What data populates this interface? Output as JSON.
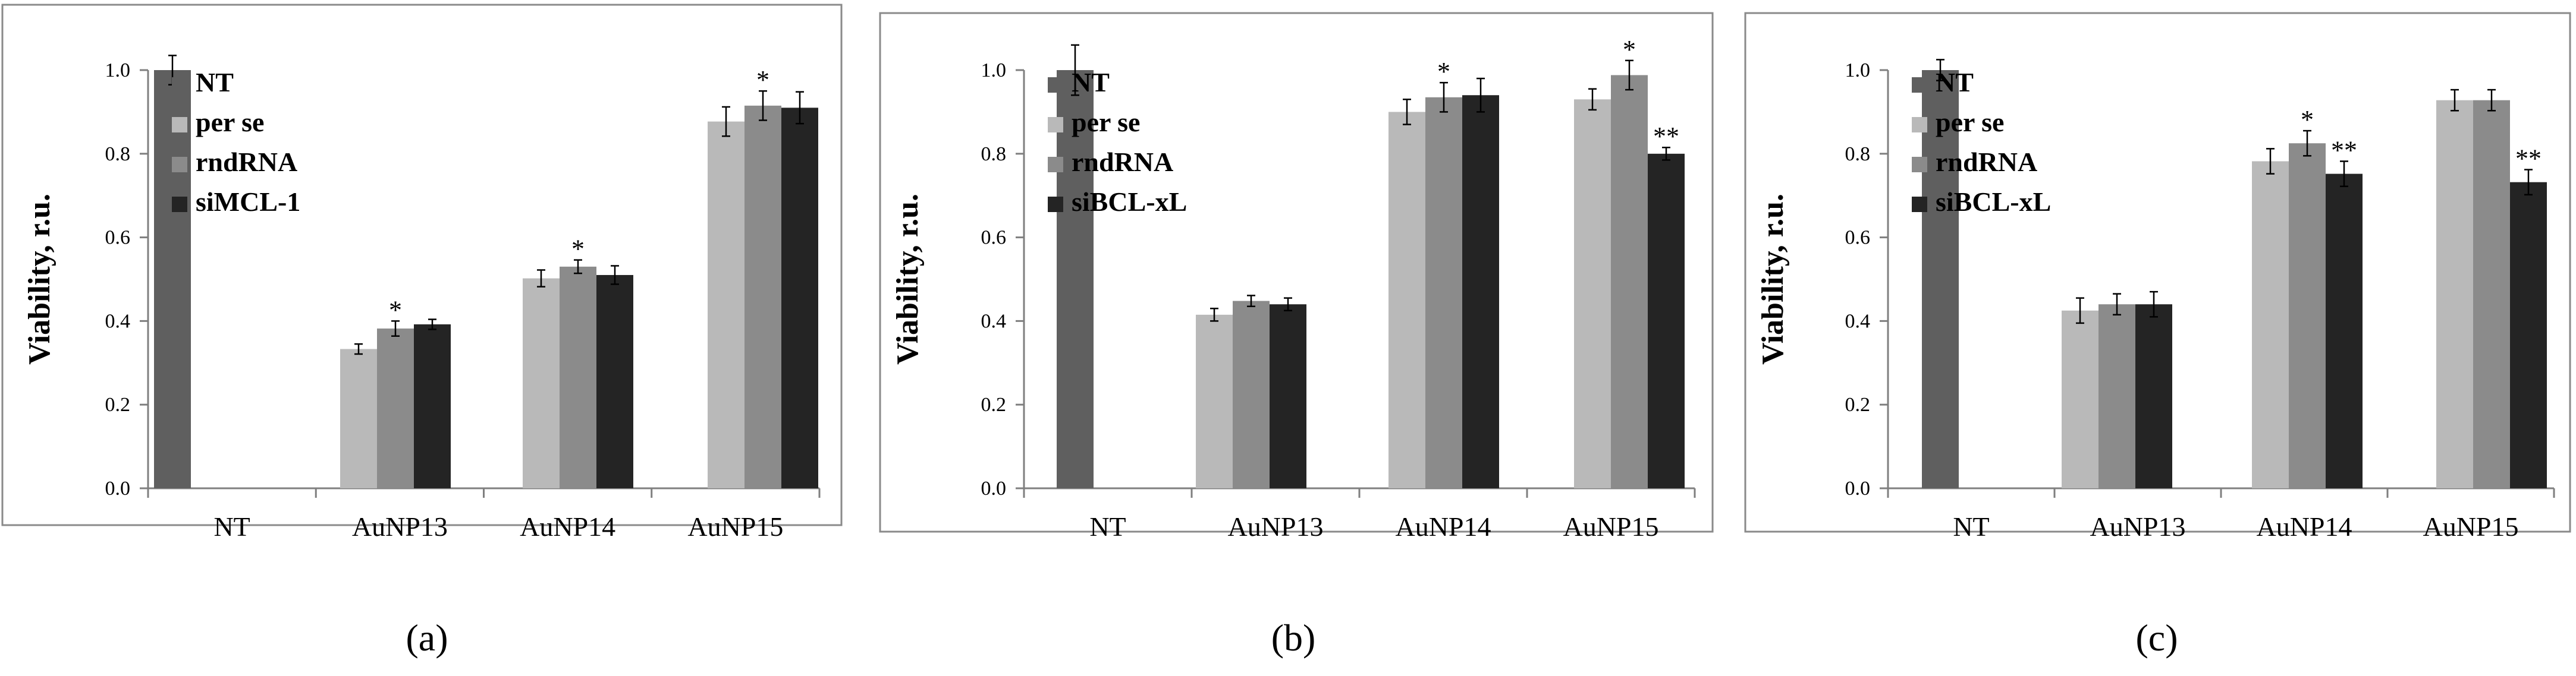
{
  "colors": {
    "NT": "#5f5f5f",
    "per se": "#b9b9b9",
    "rndRNA": "#8b8b8b",
    "siMCL-1": "#242424",
    "siBCL-xL": "#242424",
    "axis": "#7f7f7f",
    "frame": "#8a8a8a"
  },
  "chart_data": [
    {
      "type": "bar",
      "panel_label": "(a)",
      "ylabel": "Viability, r.u.",
      "ylim": [
        0,
        1.0
      ],
      "yticks": [
        "0.0",
        "0.2",
        "0.4",
        "0.6",
        "0.8",
        "1.0"
      ],
      "categories": [
        "NT",
        "AuNP13",
        "AuNP14",
        "AuNP15"
      ],
      "legend_position": "top-left",
      "series": [
        {
          "name": "NT",
          "values": [
            1.0,
            null,
            null,
            null
          ],
          "errors": [
            0.035,
            null,
            null,
            null
          ],
          "annotations": [
            "",
            "",
            "",
            ""
          ]
        },
        {
          "name": "per se",
          "values": [
            null,
            0.333,
            0.502,
            0.877
          ],
          "errors": [
            null,
            0.012,
            0.02,
            0.035
          ],
          "annotations": [
            "",
            "",
            "",
            ""
          ]
        },
        {
          "name": "rndRNA",
          "values": [
            null,
            0.382,
            0.53,
            0.915
          ],
          "errors": [
            null,
            0.018,
            0.016,
            0.035
          ],
          "annotations": [
            "",
            "*",
            "*",
            "*"
          ]
        },
        {
          "name": "siMCL-1",
          "values": [
            null,
            0.392,
            0.51,
            0.91
          ],
          "errors": [
            null,
            0.012,
            0.022,
            0.038
          ],
          "annotations": [
            "",
            "",
            "",
            ""
          ]
        }
      ]
    },
    {
      "type": "bar",
      "panel_label": "(b)",
      "ylabel": "Viability, r.u.",
      "ylim": [
        0,
        1.0
      ],
      "yticks": [
        "0.0",
        "0.2",
        "0.4",
        "0.6",
        "0.8",
        "1.0"
      ],
      "categories": [
        "NT",
        "AuNP13",
        "AuNP14",
        "AuNP15"
      ],
      "legend_position": "top-left",
      "series": [
        {
          "name": "NT",
          "values": [
            1.0,
            null,
            null,
            null
          ],
          "errors": [
            0.06,
            null,
            null,
            null
          ],
          "annotations": [
            "",
            "",
            "",
            ""
          ]
        },
        {
          "name": "per se",
          "values": [
            null,
            0.415,
            0.9,
            0.93
          ],
          "errors": [
            null,
            0.015,
            0.03,
            0.025
          ],
          "annotations": [
            "",
            "",
            "",
            ""
          ]
        },
        {
          "name": "rndRNA",
          "values": [
            null,
            0.448,
            0.935,
            0.988
          ],
          "errors": [
            null,
            0.013,
            0.035,
            0.035
          ],
          "annotations": [
            "",
            "",
            "*",
            "*"
          ]
        },
        {
          "name": "siBCL-xL",
          "values": [
            null,
            0.44,
            0.94,
            0.8
          ],
          "errors": [
            null,
            0.015,
            0.04,
            0.015
          ],
          "annotations": [
            "",
            "",
            "",
            "**"
          ]
        }
      ]
    },
    {
      "type": "bar",
      "panel_label": "(c)",
      "ylabel": "Viability, r.u.",
      "ylim": [
        0,
        1.0
      ],
      "yticks": [
        "0.0",
        "0.2",
        "0.4",
        "0.6",
        "0.8",
        "1.0"
      ],
      "categories": [
        "NT",
        "AuNP13",
        "AuNP14",
        "AuNP15"
      ],
      "legend_position": "top-left",
      "series": [
        {
          "name": "NT",
          "values": [
            1.0,
            null,
            null,
            null
          ],
          "errors": [
            0.025,
            null,
            null,
            null
          ],
          "annotations": [
            "",
            "",
            "",
            ""
          ]
        },
        {
          "name": "per se",
          "values": [
            null,
            0.425,
            0.782,
            0.928
          ],
          "errors": [
            null,
            0.03,
            0.03,
            0.025
          ],
          "annotations": [
            "",
            "",
            "",
            ""
          ]
        },
        {
          "name": "rndRNA",
          "values": [
            null,
            0.44,
            0.825,
            0.928
          ],
          "errors": [
            null,
            0.025,
            0.03,
            0.025
          ],
          "annotations": [
            "",
            "",
            "*",
            ""
          ]
        },
        {
          "name": "siBCL-xL",
          "values": [
            null,
            0.44,
            0.752,
            0.732
          ],
          "errors": [
            null,
            0.03,
            0.03,
            0.03
          ],
          "annotations": [
            "",
            "",
            "**",
            "**"
          ]
        }
      ]
    }
  ]
}
